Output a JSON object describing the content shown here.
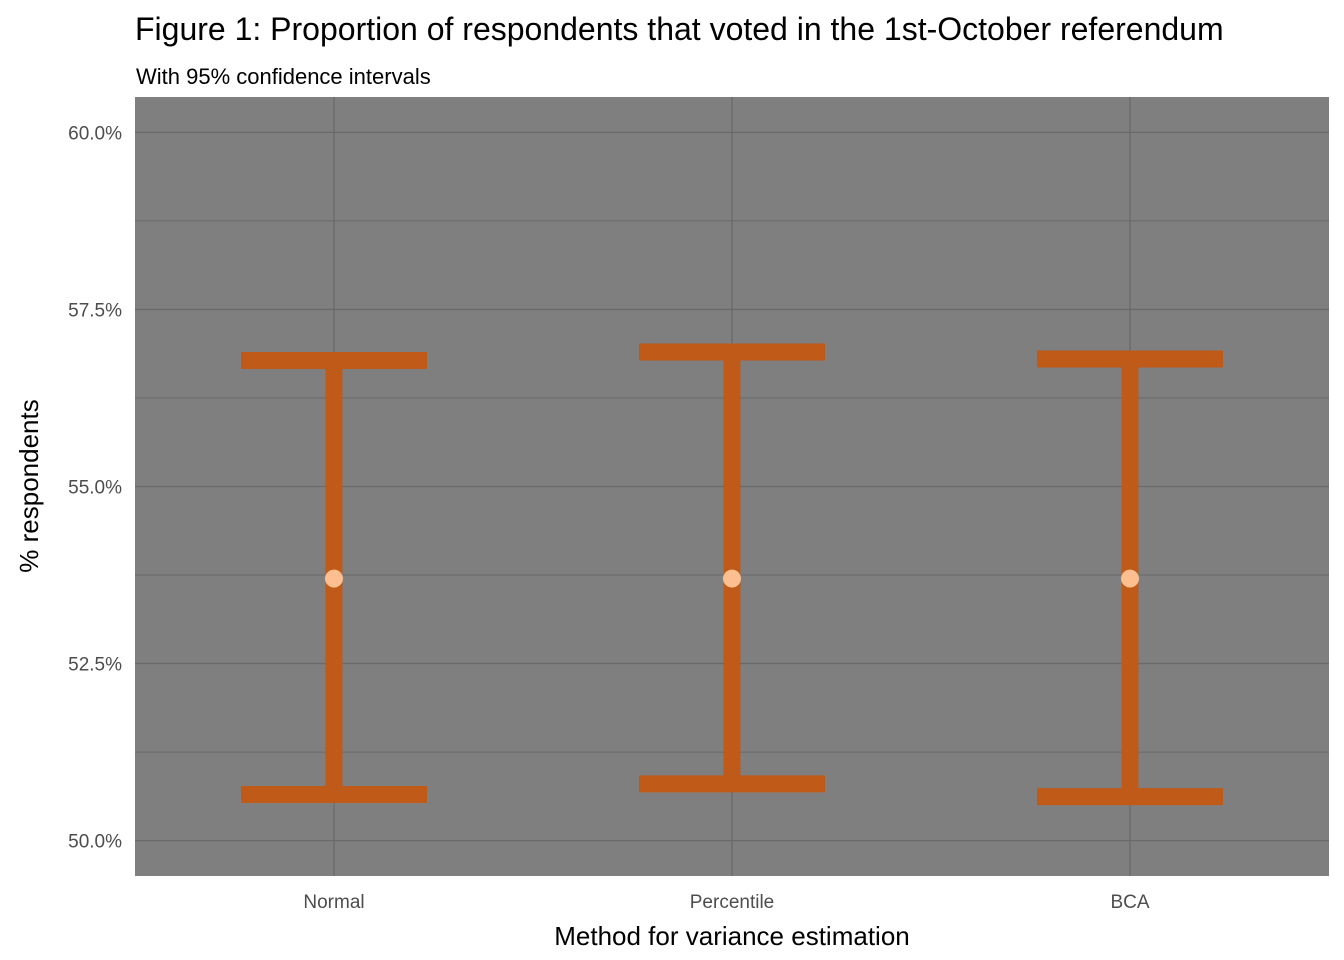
{
  "chart_data": {
    "type": "errorbar",
    "title": "Figure 1: Proportion of respondents that voted in the 1st-October referendum",
    "subtitle": "With 95% confidence intervals",
    "xlabel": "Method for variance estimation",
    "ylabel": "% respondents",
    "categories": [
      "Normal",
      "Percentile",
      "BCA"
    ],
    "estimate": [
      53.7,
      53.7,
      53.7
    ],
    "lower": [
      50.65,
      50.8,
      50.62
    ],
    "upper": [
      56.78,
      56.9,
      56.8
    ],
    "ylim": [
      49.5,
      60.5
    ],
    "yticks": [
      50.0,
      52.5,
      55.0,
      57.5,
      60.0
    ],
    "ytick_labels": [
      "50.0%",
      "52.5%",
      "55.0%",
      "57.5%",
      "60.0%"
    ],
    "grid": true,
    "colors": {
      "panel": "#7f7f7f",
      "grid": "#6a6a6a",
      "errorbar": "#c05a18",
      "point": "#fdbf8f"
    }
  }
}
